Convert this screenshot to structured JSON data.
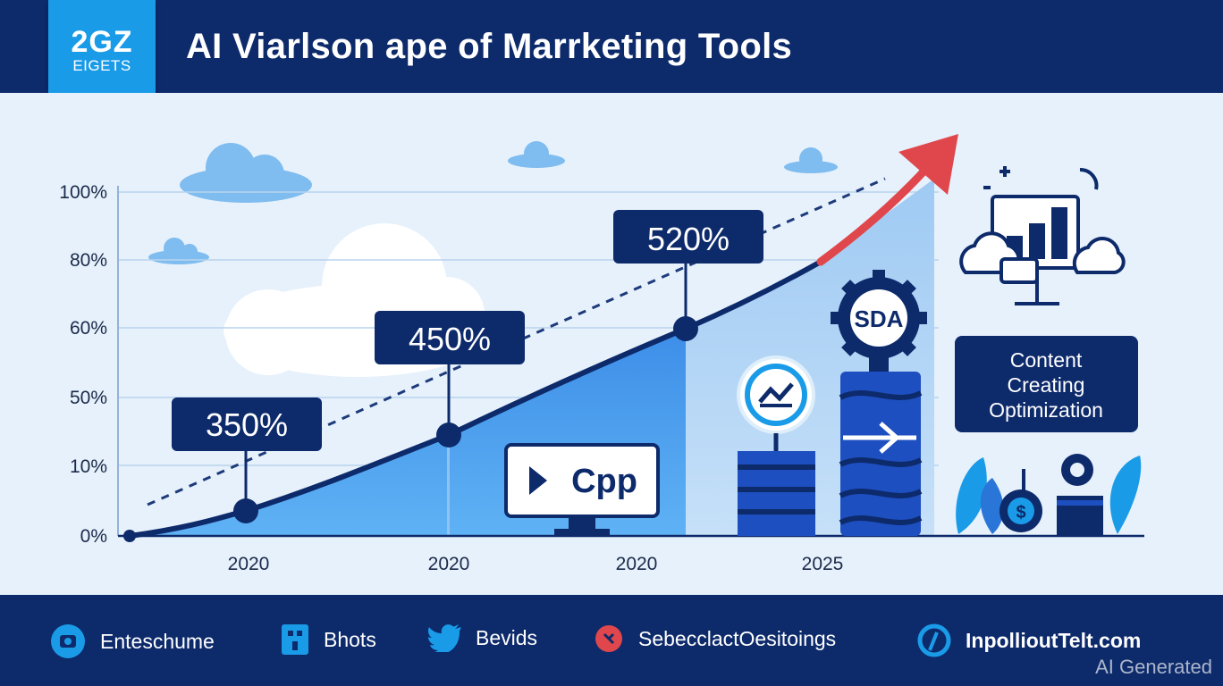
{
  "header": {
    "logo_line1": "2GZ",
    "logo_line2": "EIGETS",
    "title": "AI Viarlson ape of Marrketing Tools"
  },
  "chart_data": {
    "type": "line",
    "title": "AI Viarlson ape of Marrketing Tools",
    "y_ticks": [
      "100%",
      "80%",
      "60%",
      "50%",
      "10%",
      "0%"
    ],
    "x_ticks": [
      "2020",
      "2020",
      "2020",
      "2025"
    ],
    "series": [
      {
        "style": "solid-curve",
        "points": [
          {
            "label": "350%"
          },
          {
            "label": "450%"
          },
          {
            "label": "520%"
          }
        ]
      },
      {
        "style": "dashed-trend"
      }
    ],
    "grid": true
  },
  "icons": {
    "cpp_label": "Cpp",
    "gear_label": "SDA",
    "content_box": [
      "Content",
      "Creating",
      "Optimization"
    ]
  },
  "footer": {
    "items": [
      {
        "icon": "camera-icon",
        "label": "Enteschume"
      },
      {
        "icon": "app-icon",
        "label": "Bhots"
      },
      {
        "icon": "twitter-bird-icon",
        "label": "Bevids"
      },
      {
        "icon": "pin-icon",
        "label": "SebecclactOesitoings"
      },
      {
        "icon": "globe-icon",
        "label": "InpollioutTelt.com"
      }
    ]
  },
  "watermark": "AI Generated",
  "colors": {
    "navy": "#0d2a6b",
    "accent_blue": "#1a9be8",
    "arrow_red": "#e0474c",
    "background": "#e6f1fb"
  }
}
